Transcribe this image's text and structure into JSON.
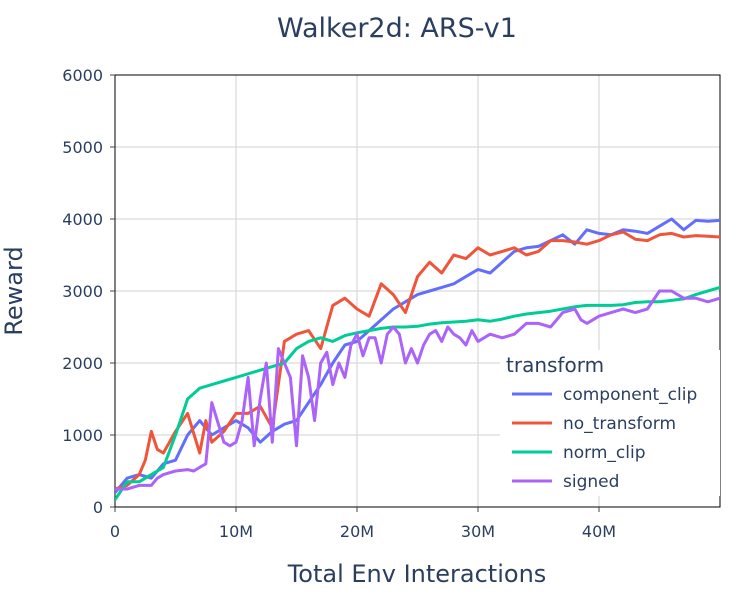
{
  "chart_data": {
    "type": "line",
    "title": "Walker2d: ARS-v1",
    "xlabel": "Total Env Interactions",
    "ylabel": "Reward",
    "xlim": [
      0,
      50000000
    ],
    "ylim": [
      0,
      6000
    ],
    "x_ticks": [
      0,
      10000000,
      20000000,
      30000000,
      40000000
    ],
    "x_tick_labels": [
      "0",
      "10M",
      "20M",
      "30M",
      "40M"
    ],
    "y_ticks": [
      0,
      1000,
      2000,
      3000,
      4000,
      5000,
      6000
    ],
    "y_tick_labels": [
      "0",
      "1000",
      "2000",
      "3000",
      "4000",
      "5000",
      "6000"
    ],
    "grid": true,
    "legend": {
      "title": "transform",
      "placement": "right-middle"
    },
    "series": [
      {
        "name": "component_clip",
        "color": "#636efa",
        "x": [
          0,
          1000000,
          2000000,
          3000000,
          4000000,
          5000000,
          6000000,
          7000000,
          8000000,
          9000000,
          10000000,
          11000000,
          12000000,
          13000000,
          14000000,
          15000000,
          16000000,
          17000000,
          18000000,
          19000000,
          20000000,
          21000000,
          22000000,
          23000000,
          24000000,
          25000000,
          26000000,
          27000000,
          28000000,
          29000000,
          30000000,
          31000000,
          32000000,
          33000000,
          34000000,
          35000000,
          36000000,
          37000000,
          38000000,
          39000000,
          40000000,
          41000000,
          42000000,
          43000000,
          44000000,
          45000000,
          46000000,
          47000000,
          48000000,
          49000000,
          50000000
        ],
        "y": [
          200,
          400,
          450,
          400,
          600,
          650,
          1000,
          1200,
          1000,
          1100,
          1200,
          1100,
          900,
          1050,
          1150,
          1200,
          1450,
          1700,
          2000,
          2250,
          2300,
          2450,
          2600,
          2750,
          2850,
          2950,
          3000,
          3050,
          3100,
          3200,
          3300,
          3250,
          3400,
          3550,
          3600,
          3620,
          3700,
          3780,
          3650,
          3850,
          3800,
          3780,
          3850,
          3830,
          3800,
          3900,
          4000,
          3850,
          3980,
          3970,
          3980
        ]
      },
      {
        "name": "no_transform",
        "color": "#ef553b",
        "x": [
          0,
          1000000,
          2000000,
          2500000,
          3000000,
          3500000,
          4000000,
          5000000,
          6000000,
          7000000,
          7500000,
          8000000,
          9000000,
          10000000,
          11000000,
          12000000,
          13000000,
          14000000,
          15000000,
          16000000,
          17000000,
          18000000,
          19000000,
          20000000,
          21000000,
          22000000,
          23000000,
          24000000,
          25000000,
          26000000,
          27000000,
          28000000,
          29000000,
          30000000,
          31000000,
          32000000,
          33000000,
          34000000,
          35000000,
          36000000,
          37000000,
          38000000,
          39000000,
          40000000,
          41000000,
          42000000,
          43000000,
          44000000,
          45000000,
          46000000,
          47000000,
          48000000,
          49000000,
          50000000
        ],
        "y": [
          250,
          300,
          450,
          650,
          1050,
          800,
          750,
          1050,
          1300,
          750,
          1200,
          900,
          1050,
          1300,
          1300,
          1400,
          1100,
          2300,
          2400,
          2450,
          2200,
          2800,
          2900,
          2750,
          2650,
          3100,
          2950,
          2700,
          3200,
          3400,
          3250,
          3500,
          3450,
          3600,
          3500,
          3550,
          3600,
          3500,
          3550,
          3700,
          3700,
          3680,
          3650,
          3700,
          3780,
          3820,
          3720,
          3700,
          3780,
          3800,
          3750,
          3770,
          3760,
          3750
        ]
      },
      {
        "name": "norm_clip",
        "color": "#00cc96",
        "x": [
          0,
          1000000,
          2000000,
          3000000,
          4000000,
          5000000,
          6000000,
          7000000,
          8000000,
          9000000,
          10000000,
          11000000,
          12000000,
          13000000,
          14000000,
          15000000,
          16000000,
          17000000,
          18000000,
          19000000,
          20000000,
          21000000,
          22000000,
          23000000,
          24000000,
          25000000,
          26000000,
          27000000,
          28000000,
          29000000,
          30000000,
          31000000,
          32000000,
          33000000,
          34000000,
          35000000,
          36000000,
          37000000,
          38000000,
          39000000,
          40000000,
          41000000,
          42000000,
          43000000,
          44000000,
          45000000,
          46000000,
          47000000,
          48000000,
          49000000,
          50000000
        ],
        "y": [
          100,
          350,
          350,
          450,
          550,
          1000,
          1500,
          1650,
          1700,
          1750,
          1800,
          1850,
          1900,
          1950,
          2000,
          2200,
          2300,
          2350,
          2300,
          2380,
          2420,
          2450,
          2480,
          2500,
          2500,
          2510,
          2540,
          2560,
          2570,
          2580,
          2600,
          2580,
          2610,
          2650,
          2680,
          2700,
          2720,
          2750,
          2780,
          2800,
          2800,
          2800,
          2810,
          2840,
          2850,
          2850,
          2870,
          2890,
          2950,
          3000,
          3050
        ]
      },
      {
        "name": "signed",
        "color": "#ab63fa",
        "x": [
          0,
          1000000,
          2000000,
          3000000,
          3500000,
          4000000,
          5000000,
          6000000,
          6500000,
          7000000,
          7500000,
          8000000,
          9000000,
          9500000,
          10000000,
          10500000,
          11000000,
          11500000,
          12000000,
          12500000,
          13000000,
          13500000,
          14000000,
          14500000,
          15000000,
          15500000,
          16000000,
          16500000,
          17000000,
          17500000,
          18000000,
          18500000,
          19000000,
          19500000,
          20000000,
          20500000,
          21000000,
          21500000,
          22000000,
          22500000,
          23000000,
          23500000,
          24000000,
          24500000,
          25000000,
          25500000,
          26000000,
          26500000,
          27000000,
          27500000,
          28000000,
          28500000,
          29000000,
          29500000,
          30000000,
          31000000,
          32000000,
          33000000,
          34000000,
          35000000,
          36000000,
          37000000,
          38000000,
          38500000,
          39000000,
          40000000,
          41000000,
          42000000,
          43000000,
          44000000,
          45000000,
          46000000,
          47000000,
          48000000,
          49000000,
          50000000
        ],
        "y": [
          250,
          250,
          300,
          300,
          400,
          450,
          500,
          520,
          500,
          550,
          600,
          1450,
          900,
          850,
          900,
          1200,
          1800,
          850,
          1500,
          2000,
          900,
          2200,
          2000,
          1800,
          850,
          2100,
          1800,
          1200,
          2000,
          2150,
          1700,
          2000,
          1800,
          2250,
          2400,
          2100,
          2350,
          2350,
          2000,
          2400,
          2500,
          2400,
          2000,
          2200,
          2000,
          2250,
          2400,
          2450,
          2300,
          2500,
          2400,
          2350,
          2250,
          2450,
          2300,
          2400,
          2350,
          2400,
          2550,
          2550,
          2500,
          2700,
          2750,
          2600,
          2550,
          2650,
          2700,
          2750,
          2700,
          2750,
          3000,
          3000,
          2900,
          2900,
          2850,
          2900
        ]
      }
    ]
  }
}
